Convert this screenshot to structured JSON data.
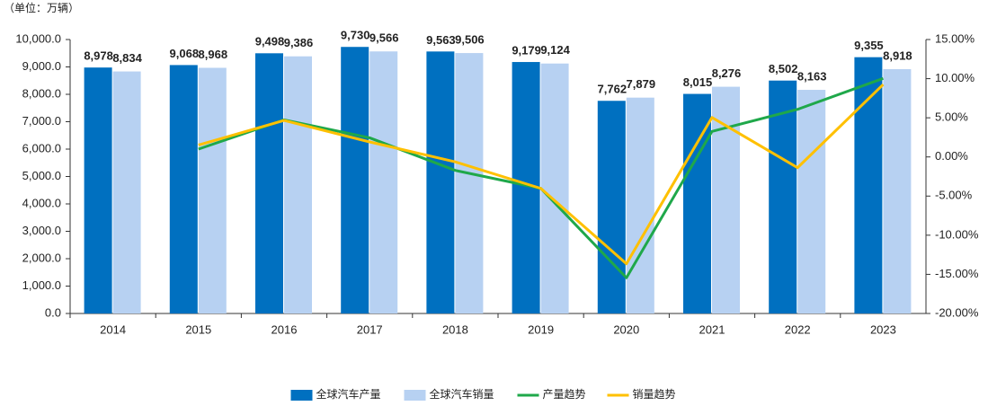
{
  "chart_data": {
    "type": "bar_line",
    "unit_note": "（单位：万辆）",
    "categories": [
      "2014",
      "2015",
      "2016",
      "2017",
      "2018",
      "2019",
      "2020",
      "2021",
      "2022",
      "2023"
    ],
    "series": [
      {
        "name": "全球汽车产量",
        "type": "bar",
        "color": "#0070c0",
        "values": [
          8978,
          9068,
          9498,
          9730,
          9563,
          9179,
          7762,
          8015,
          8502,
          9355
        ],
        "value_labels": [
          "8,978",
          "9,068",
          "9,498",
          "9,730",
          "9,563",
          "9,179",
          "7,762",
          "8,015",
          "8,502",
          "9,355"
        ]
      },
      {
        "name": "全球汽车销量",
        "type": "bar",
        "color": "#b7d1f2",
        "values": [
          8834,
          8968,
          9386,
          9566,
          9506,
          9124,
          7879,
          8276,
          8163,
          8918
        ],
        "value_labels": [
          "8,834",
          "8,968",
          "9,386",
          "9,566",
          "9,506",
          "9,124",
          "7,879",
          "8,276",
          "8,163",
          "8,918"
        ]
      },
      {
        "name": "产量趋势",
        "type": "line",
        "axis": "y2",
        "color": "#1fa84a",
        "values": [
          null,
          1.0,
          4.74,
          2.44,
          -1.72,
          -4.02,
          -15.44,
          3.26,
          6.08,
          10.03
        ]
      },
      {
        "name": "销量趋势",
        "type": "line",
        "axis": "y2",
        "color": "#ffc000",
        "values": [
          null,
          1.52,
          4.66,
          1.92,
          -0.63,
          -4.02,
          -13.65,
          5.04,
          -1.37,
          9.25
        ]
      }
    ],
    "ylim": [
      0,
      10000
    ],
    "yticks": [
      {
        "value": 0,
        "label": "0.0"
      },
      {
        "value": 1000,
        "label": "1,000.0"
      },
      {
        "value": 2000,
        "label": "2,000.0"
      },
      {
        "value": 3000,
        "label": "3,000.0"
      },
      {
        "value": 4000,
        "label": "4,000.0"
      },
      {
        "value": 5000,
        "label": "5,000.0"
      },
      {
        "value": 6000,
        "label": "6,000.0"
      },
      {
        "value": 7000,
        "label": "7,000.0"
      },
      {
        "value": 8000,
        "label": "8,000.0"
      },
      {
        "value": 9000,
        "label": "9,000.0"
      },
      {
        "value": 10000,
        "label": "10,000.0"
      }
    ],
    "y2lim": [
      -20,
      15
    ],
    "y2ticks": [
      {
        "value": -20,
        "label": "-20.00%"
      },
      {
        "value": -15,
        "label": "-15.00%"
      },
      {
        "value": -10,
        "label": "-10.00%"
      },
      {
        "value": -5,
        "label": "-5.00%"
      },
      {
        "value": 0,
        "label": "0.00%"
      },
      {
        "value": 5,
        "label": "5.00%"
      },
      {
        "value": 10,
        "label": "10.00%"
      },
      {
        "value": 15,
        "label": "15.00%"
      }
    ],
    "legend": "bottom"
  }
}
